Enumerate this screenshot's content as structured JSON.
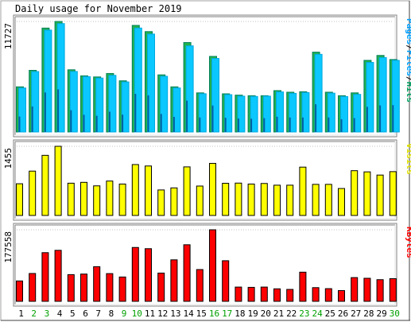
{
  "chart_data": {
    "type": "bar",
    "title": "Daily usage for November 2019",
    "categories": [
      "1",
      "2",
      "3",
      "4",
      "5",
      "6",
      "7",
      "8",
      "9",
      "10",
      "11",
      "12",
      "13",
      "14",
      "15",
      "16",
      "17",
      "18",
      "19",
      "20",
      "21",
      "22",
      "23",
      "24",
      "25",
      "26",
      "27",
      "28",
      "29",
      "30"
    ],
    "weekend_days": [
      2,
      3,
      9,
      10,
      16,
      17,
      23,
      24,
      30
    ],
    "colors": {
      "hits": "#00805c",
      "hits_face": "#22b14c",
      "files": "#00a8e0",
      "files_face": "#0ac8ff",
      "pages": "#0060a0",
      "visits": "#ffff00",
      "kbytes": "#ff0000",
      "weekday_label": "#000000",
      "weekend_label": "#00a000",
      "label_pages": "#00a0ff",
      "label_files": "#00a0ff",
      "label_hits": "#00a060",
      "label_visits": "#e0e000",
      "label_kbytes": "#ff0000",
      "frame_dark": "#808080",
      "frame_light": "#e0e0e0"
    },
    "panels": [
      {
        "id": "hits",
        "max_label": "11727",
        "ylim": [
          0,
          11727
        ],
        "series": [
          {
            "name": "Hits",
            "values": [
              4790,
              6540,
              11025,
              11727,
              6600,
              5958,
              5840,
              6204,
              5430,
              11310,
              10650,
              6060,
              4790,
              9490,
              4150,
              8020,
              4050,
              3910,
              3850,
              3850,
              4390,
              4220,
              4270,
              8470,
              4220,
              3850,
              4150,
              7600,
              8120,
              7690
            ]
          },
          {
            "name": "Files",
            "values": [
              4670,
              6410,
              10810,
              11500,
              6420,
              5870,
              5720,
              6010,
              5310,
              11030,
              10390,
              5910,
              4670,
              9140,
              4060,
              7800,
              3960,
              3800,
              3770,
              3800,
              4250,
              4100,
              4180,
              8240,
              4120,
              3760,
              3990,
              7380,
              7900,
              7600
            ]
          },
          {
            "name": "Pages",
            "values": [
              1640,
              2710,
              4190,
              4520,
              2310,
              1820,
              1720,
              2150,
              1840,
              4050,
              3890,
              1920,
              1600,
              3330,
              1540,
              2810,
              1510,
              1430,
              1410,
              1470,
              1620,
              1540,
              1540,
              2940,
              1540,
              1360,
              1470,
              2670,
              2820,
              2850
            ]
          }
        ],
        "axis_labels": [
          {
            "text": "Hits",
            "color_key": "label_hits"
          },
          {
            "text": "/",
            "color_key": "weekday_label"
          },
          {
            "text": "Files",
            "color_key": "label_files"
          },
          {
            "text": "/",
            "color_key": "weekday_label"
          },
          {
            "text": "Pages",
            "color_key": "label_pages"
          }
        ]
      },
      {
        "id": "visits",
        "max_label": "1455",
        "ylim": [
          0,
          1455
        ],
        "series": [
          {
            "name": "Visits",
            "values": [
              667,
              933,
              1265,
              1455,
              679,
              697,
              623,
              724,
              661,
              1071,
              1041,
              537,
              580,
              1022,
              619,
              1096,
              677,
              681,
              661,
              673,
              637,
              637,
              1017,
              654,
              654,
              567,
              942,
              917,
              850,
              922
            ]
          }
        ],
        "axis_labels": [
          {
            "text": "Visits",
            "color_key": "label_visits"
          }
        ]
      },
      {
        "id": "kbytes",
        "max_label": "177558",
        "ylim": [
          0,
          177558
        ],
        "series": [
          {
            "name": "KBytes",
            "values": [
              50590,
              69100,
              120790,
              126570,
              66300,
              67670,
              86000,
              68820,
              60380,
              133650,
              130660,
              70130,
              102980,
              140390,
              78880,
              177558,
              100780,
              35380,
              34710,
              35390,
              31060,
              29590,
              72370,
              34000,
              31480,
              26680,
              58950,
              57240,
              53780,
              56270
            ]
          }
        ],
        "axis_labels": [
          {
            "text": "KBytes",
            "color_key": "label_kbytes"
          }
        ]
      }
    ]
  }
}
